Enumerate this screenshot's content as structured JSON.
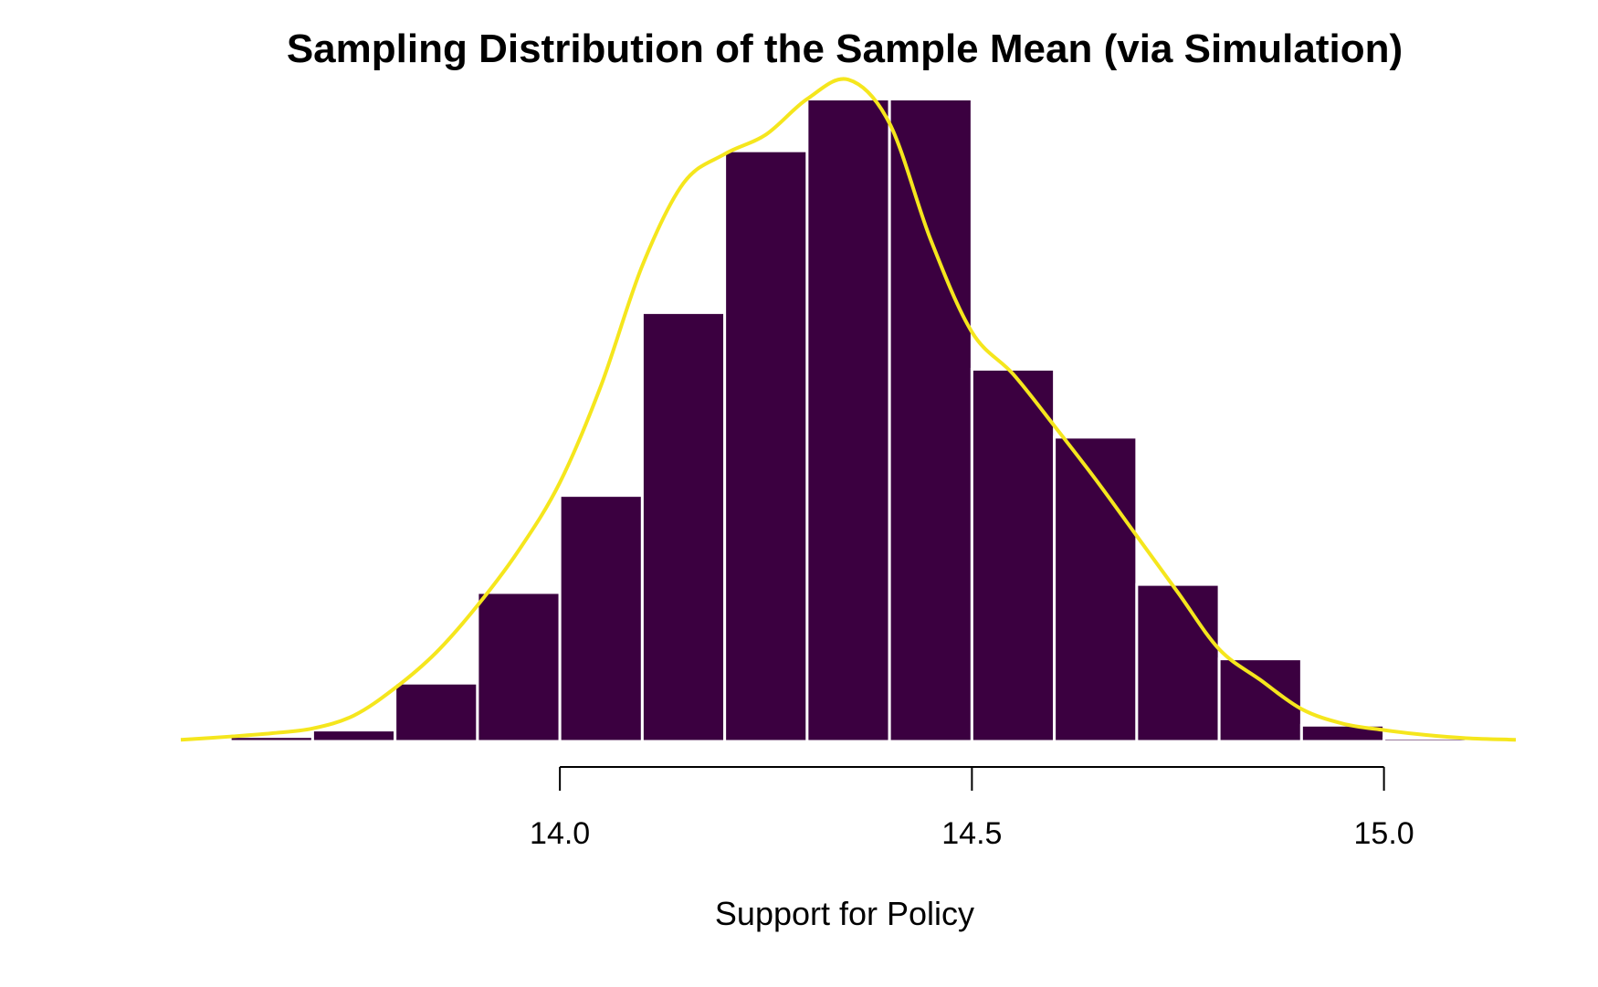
{
  "chart_data": {
    "type": "bar",
    "title": "Sampling Distribution of the Sample Mean (via Simulation)",
    "xlabel": "Support for Policy",
    "ylabel": "",
    "x_ticks": [
      14.0,
      14.5,
      15.0
    ],
    "x_tick_labels": [
      "14.0",
      "14.5",
      "15.0"
    ],
    "xlim": [
      13.54,
      15.16
    ],
    "ylim": [
      0,
      3.95
    ],
    "bar_color": "#3b0040",
    "bar_edge_color": "#ffffff",
    "density_color": "#f5e61d",
    "bins": [
      {
        "x0": 13.6,
        "x1": 13.7,
        "value": 0.03
      },
      {
        "x0": 13.7,
        "x1": 13.8,
        "value": 0.07
      },
      {
        "x0": 13.8,
        "x1": 13.9,
        "value": 0.36
      },
      {
        "x0": 13.9,
        "x1": 14.0,
        "value": 0.92
      },
      {
        "x0": 14.0,
        "x1": 14.1,
        "value": 1.52
      },
      {
        "x0": 14.1,
        "x1": 14.2,
        "value": 2.65
      },
      {
        "x0": 14.2,
        "x1": 14.3,
        "value": 3.65
      },
      {
        "x0": 14.3,
        "x1": 14.4,
        "value": 3.97
      },
      {
        "x0": 14.4,
        "x1": 14.5,
        "value": 3.97
      },
      {
        "x0": 14.5,
        "x1": 14.6,
        "value": 2.3
      },
      {
        "x0": 14.6,
        "x1": 14.7,
        "value": 1.88
      },
      {
        "x0": 14.7,
        "x1": 14.8,
        "value": 0.97
      },
      {
        "x0": 14.8,
        "x1": 14.9,
        "value": 0.51
      },
      {
        "x0": 14.9,
        "x1": 15.0,
        "value": 0.1
      },
      {
        "x0": 15.0,
        "x1": 15.1,
        "value": 0.02
      }
    ],
    "density_curve": {
      "x": [
        13.54,
        13.6,
        13.65,
        13.7,
        13.75,
        13.8,
        13.85,
        13.9,
        13.95,
        14.0,
        14.05,
        14.1,
        14.15,
        14.2,
        14.25,
        14.3,
        14.35,
        14.4,
        14.45,
        14.5,
        14.55,
        14.6,
        14.65,
        14.7,
        14.75,
        14.8,
        14.85,
        14.9,
        14.95,
        15.0,
        15.05,
        15.1,
        15.16
      ],
      "y": [
        0.01,
        0.03,
        0.05,
        0.08,
        0.16,
        0.33,
        0.55,
        0.84,
        1.18,
        1.6,
        2.2,
        2.94,
        3.45,
        3.63,
        3.75,
        3.97,
        4.09,
        3.82,
        3.1,
        2.53,
        2.27,
        1.95,
        1.62,
        1.27,
        0.92,
        0.57,
        0.38,
        0.2,
        0.11,
        0.07,
        0.04,
        0.02,
        0.01
      ]
    }
  }
}
